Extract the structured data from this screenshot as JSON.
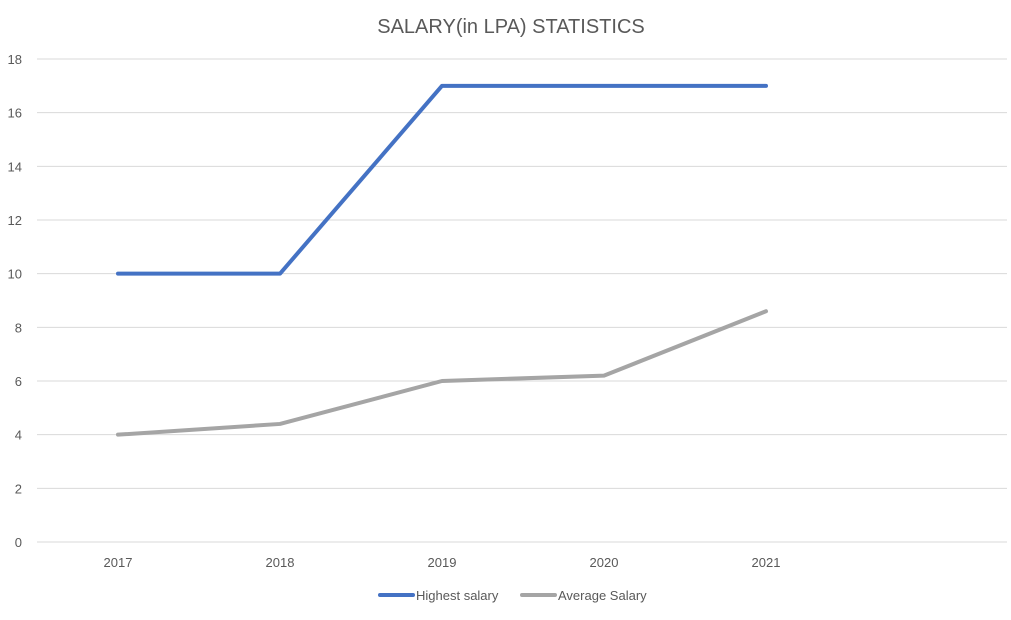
{
  "chart_data": {
    "type": "line",
    "title": "SALARY(in LPA) STATISTICS",
    "xlabel": "",
    "ylabel": "",
    "categories": [
      "2017",
      "2018",
      "2019",
      "2020",
      "2021"
    ],
    "ylim": [
      0,
      18
    ],
    "yticks": [
      "0",
      "2",
      "4",
      "6",
      "8",
      "10",
      "12",
      "14",
      "16",
      "18"
    ],
    "grid": true,
    "legend_position": "bottom",
    "series": [
      {
        "name": "Highest salary",
        "color": "#4472C4",
        "values": [
          10,
          10,
          17,
          17,
          17
        ]
      },
      {
        "name": "Average Salary",
        "color": "#A5A5A5",
        "values": [
          4,
          4.4,
          6,
          6.2,
          8.6
        ]
      }
    ]
  }
}
